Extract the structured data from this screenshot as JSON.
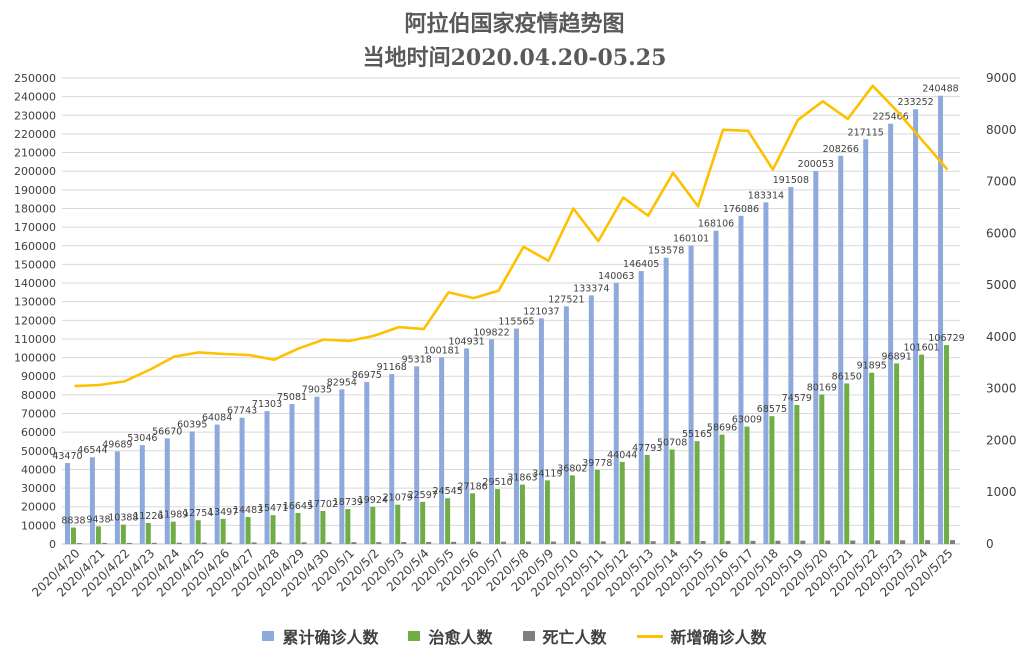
{
  "chart_data": {
    "type": "bar",
    "title": "阿拉伯国家疫情趋势图",
    "subtitle": "当地时间2020.04.20-05.25",
    "categories": [
      "2020/4/20",
      "2020/4/21",
      "2020/4/22",
      "2020/4/23",
      "2020/4/24",
      "2020/4/25",
      "2020/4/26",
      "2020/4/27",
      "2020/4/28",
      "2020/4/29",
      "2020/4/30",
      "2020/5/1",
      "2020/5/2",
      "2020/5/3",
      "2020/5/4",
      "2020/5/5",
      "2020/5/6",
      "2020/5/7",
      "2020/5/8",
      "2020/5/9",
      "2020/5/10",
      "2020/5/11",
      "2020/5/12",
      "2020/5/13",
      "2020/5/14",
      "2020/5/15",
      "2020/5/16",
      "2020/5/17",
      "2020/5/18",
      "2020/5/19",
      "2020/5/20",
      "2020/5/21",
      "2020/5/22",
      "2020/5/23",
      "2020/5/24",
      "2020/5/25"
    ],
    "series": [
      {
        "name": "累计确诊人数",
        "type": "bar",
        "axis": "left",
        "color": "#8EA9DB",
        "values": [
          43470,
          46544,
          49689,
          53046,
          56670,
          60395,
          64084,
          67743,
          71303,
          75081,
          79035,
          82954,
          86975,
          91168,
          95318,
          100181,
          104931,
          109822,
          115565,
          121037,
          127521,
          133374,
          140063,
          146405,
          153578,
          160101,
          168106,
          176086,
          183314,
          191508,
          200053,
          208266,
          217115,
          225466,
          233252,
          240488
        ]
      },
      {
        "name": "治愈人数",
        "type": "bar",
        "axis": "left",
        "color": "#70AD47",
        "values": [
          8838,
          9438,
          10388,
          11226,
          11989,
          12754,
          13497,
          14483,
          15471,
          16645,
          17702,
          18739,
          19924,
          21079,
          22597,
          24545,
          27186,
          29510,
          31863,
          34119,
          36802,
          39778,
          44044,
          47793,
          50708,
          55165,
          58696,
          63009,
          68575,
          74579,
          80169,
          86150,
          91895,
          96891,
          101601,
          106729
        ]
      },
      {
        "name": "死亡人数",
        "type": "bar",
        "axis": "left",
        "color": "#7F7F7F",
        "values": [
          500,
          560,
          600,
          650,
          700,
          740,
          780,
          820,
          860,
          900,
          950,
          990,
          1030,
          1070,
          1110,
          1160,
          1200,
          1250,
          1290,
          1330,
          1370,
          1410,
          1450,
          1490,
          1540,
          1590,
          1640,
          1690,
          1740,
          1790,
          1840,
          1890,
          1940,
          1990,
          2040,
          2090
        ]
      },
      {
        "name": "新增确诊人数",
        "type": "line",
        "axis": "right",
        "color": "#FFC000",
        "values": [
          3050,
          3070,
          3140,
          3360,
          3620,
          3700,
          3670,
          3650,
          3560,
          3780,
          3950,
          3920,
          4020,
          4190,
          4150,
          4860,
          4750,
          4890,
          5740,
          5470,
          6480,
          5850,
          6690,
          6340,
          7170,
          6520,
          8000,
          7980,
          7230,
          8190,
          8550,
          8210,
          8850,
          8350,
          7790,
          7230
        ]
      }
    ],
    "ylim": [
      0,
      250000
    ],
    "ylim_right": [
      0,
      9000
    ],
    "yticks": [
      0,
      10000,
      20000,
      30000,
      40000,
      50000,
      60000,
      70000,
      80000,
      90000,
      100000,
      110000,
      120000,
      130000,
      140000,
      150000,
      160000,
      170000,
      180000,
      190000,
      200000,
      210000,
      220000,
      230000,
      240000,
      250000
    ],
    "yticks_right": [
      0,
      1000,
      2000,
      3000,
      4000,
      5000,
      6000,
      7000,
      8000,
      9000
    ],
    "grid": true,
    "legend": "bottom"
  }
}
